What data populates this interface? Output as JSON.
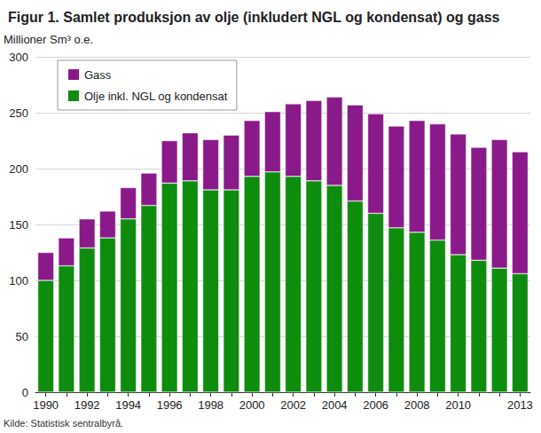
{
  "chart_data": {
    "type": "bar",
    "title": "Figur 1. Samlet produksjon av olje (inkludert NGL og kondensat) og gass",
    "y_label": "Millioner Sm³ o.e.",
    "source": "Kilde: Statistisk sentralbyrå.",
    "categories": [
      "1990",
      null,
      "1992",
      null,
      "1994",
      null,
      "1996",
      null,
      "1998",
      null,
      "2000",
      null,
      "2002",
      null,
      "2004",
      null,
      "2006",
      null,
      "2008",
      null,
      "2010",
      null,
      null,
      "2013"
    ],
    "series": [
      {
        "name": "Olje inkl. NGL og kondensat",
        "color": "#0e8c0e",
        "values": [
          100,
          113,
          129,
          138,
          155,
          167,
          187,
          189,
          181,
          181,
          193,
          197,
          193,
          189,
          185,
          171,
          160,
          147,
          143,
          136,
          123,
          118,
          111,
          106
        ]
      },
      {
        "name": "Gass",
        "color": "#8a1a8a",
        "values": [
          25,
          25,
          26,
          24,
          28,
          29,
          38,
          43,
          45,
          49,
          50,
          54,
          65,
          72,
          79,
          86,
          89,
          91,
          100,
          104,
          108,
          101,
          115,
          109
        ]
      }
    ],
    "stacked": true,
    "ylim": [
      0,
      300
    ],
    "yticks": [
      0,
      50,
      100,
      150,
      200,
      250,
      300
    ],
    "grid": true,
    "legend": "top-left"
  }
}
